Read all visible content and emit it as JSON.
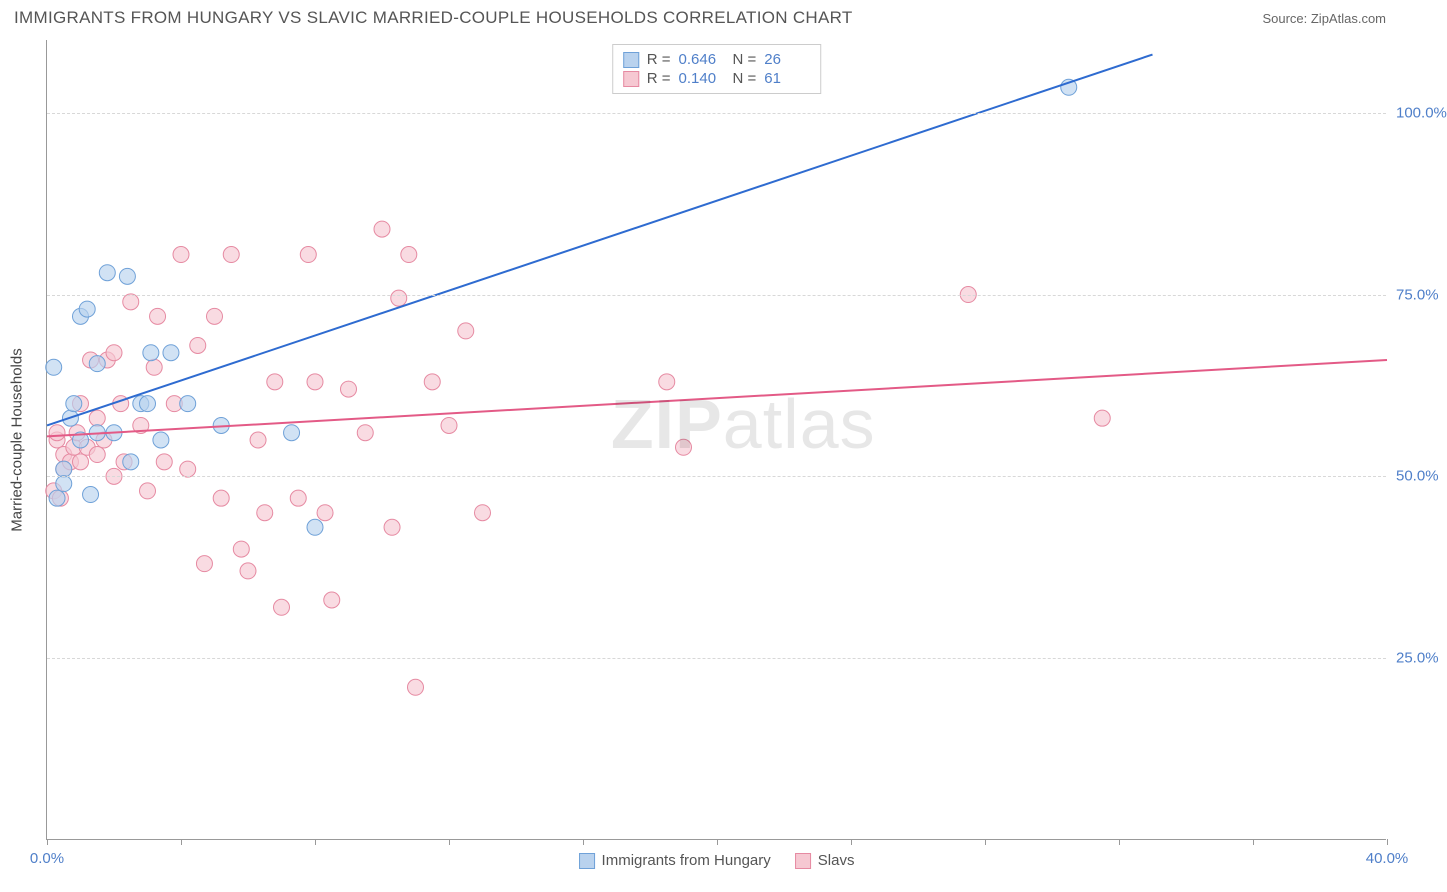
{
  "title": "IMMIGRANTS FROM HUNGARY VS SLAVIC MARRIED-COUPLE HOUSEHOLDS CORRELATION CHART",
  "source": "Source: ZipAtlas.com",
  "watermark_a": "ZIP",
  "watermark_b": "atlas",
  "chart": {
    "type": "scatter",
    "x_axis": {
      "min": 0,
      "max": 40,
      "label_min": "0.0%",
      "label_max": "40.0%",
      "ticks": [
        0,
        4,
        8,
        12,
        16,
        20,
        24,
        28,
        32,
        36,
        40
      ]
    },
    "y_axis": {
      "min": 0,
      "max": 110,
      "gridlines": [
        25,
        50,
        75,
        100
      ],
      "labels": [
        "25.0%",
        "50.0%",
        "75.0%",
        "100.0%"
      ],
      "axis_label": "Married-couple Households"
    },
    "series": [
      {
        "name": "Immigrants from Hungary",
        "fill": "#b9d2ee",
        "stroke": "#6fa1d8",
        "line_color": "#2e6bd0",
        "R": "0.646",
        "N": "26",
        "reg_line": {
          "x1": 0,
          "y1": 57,
          "x2": 33,
          "y2": 108
        },
        "points": [
          [
            0.3,
            47
          ],
          [
            0.5,
            51
          ],
          [
            0.5,
            49
          ],
          [
            0.7,
            58
          ],
          [
            0.8,
            60
          ],
          [
            1.0,
            55
          ],
          [
            1.0,
            72
          ],
          [
            1.2,
            73
          ],
          [
            1.3,
            47.5
          ],
          [
            1.5,
            65.5
          ],
          [
            1.5,
            56
          ],
          [
            1.8,
            78
          ],
          [
            2.0,
            56
          ],
          [
            2.4,
            77.5
          ],
          [
            2.5,
            52
          ],
          [
            2.8,
            60
          ],
          [
            3.1,
            67
          ],
          [
            3.0,
            60
          ],
          [
            3.4,
            55
          ],
          [
            3.7,
            67
          ],
          [
            4.2,
            60
          ],
          [
            5.2,
            57
          ],
          [
            7.3,
            56
          ],
          [
            8.0,
            43
          ],
          [
            30.5,
            103.5
          ],
          [
            0.2,
            65
          ]
        ]
      },
      {
        "name": "Slavs",
        "fill": "#f6c8d2",
        "stroke": "#e68aa2",
        "line_color": "#e35a86",
        "R": "0.140",
        "N": "61",
        "reg_line": {
          "x1": 0,
          "y1": 55.5,
          "x2": 40,
          "y2": 66
        },
        "points": [
          [
            0.2,
            48
          ],
          [
            0.3,
            55
          ],
          [
            0.3,
            56
          ],
          [
            0.4,
            47
          ],
          [
            0.5,
            53
          ],
          [
            0.5,
            51
          ],
          [
            0.7,
            52
          ],
          [
            0.8,
            54
          ],
          [
            0.9,
            56
          ],
          [
            1.0,
            52
          ],
          [
            1.0,
            60
          ],
          [
            1.2,
            54
          ],
          [
            1.3,
            66
          ],
          [
            1.5,
            58
          ],
          [
            1.5,
            53
          ],
          [
            1.7,
            55
          ],
          [
            1.8,
            66
          ],
          [
            2.0,
            50
          ],
          [
            2.0,
            67
          ],
          [
            2.2,
            60
          ],
          [
            2.3,
            52
          ],
          [
            2.5,
            74
          ],
          [
            2.8,
            57
          ],
          [
            3.0,
            48
          ],
          [
            3.2,
            65
          ],
          [
            3.3,
            72
          ],
          [
            3.5,
            52
          ],
          [
            3.8,
            60
          ],
          [
            4.0,
            80.5
          ],
          [
            4.2,
            51
          ],
          [
            4.5,
            68
          ],
          [
            4.7,
            38
          ],
          [
            5.0,
            72
          ],
          [
            5.2,
            47
          ],
          [
            5.5,
            80.5
          ],
          [
            5.8,
            40
          ],
          [
            6.0,
            37
          ],
          [
            6.3,
            55
          ],
          [
            6.5,
            45
          ],
          [
            6.8,
            63
          ],
          [
            7.0,
            32
          ],
          [
            7.5,
            47
          ],
          [
            7.8,
            80.5
          ],
          [
            8.0,
            63
          ],
          [
            8.3,
            45
          ],
          [
            8.5,
            33
          ],
          [
            9.0,
            62
          ],
          [
            9.5,
            56
          ],
          [
            10.0,
            84
          ],
          [
            10.3,
            43
          ],
          [
            10.5,
            74.5
          ],
          [
            10.8,
            80.5
          ],
          [
            11.0,
            21
          ],
          [
            11.5,
            63
          ],
          [
            12.0,
            57
          ],
          [
            12.5,
            70
          ],
          [
            13.0,
            45
          ],
          [
            18.5,
            63
          ],
          [
            19.0,
            54
          ],
          [
            27.5,
            75
          ],
          [
            31.5,
            58
          ]
        ]
      }
    ],
    "marker_radius": 8,
    "marker_opacity": 0.65,
    "line_width": 2,
    "background": "#ffffff",
    "grid_color": "#d8d8d8"
  },
  "legend_bottom": {
    "items": [
      {
        "label": "Immigrants from Hungary",
        "fill": "#b9d2ee",
        "stroke": "#6fa1d8"
      },
      {
        "label": "Slavs",
        "fill": "#f6c8d2",
        "stroke": "#e68aa2"
      }
    ]
  }
}
